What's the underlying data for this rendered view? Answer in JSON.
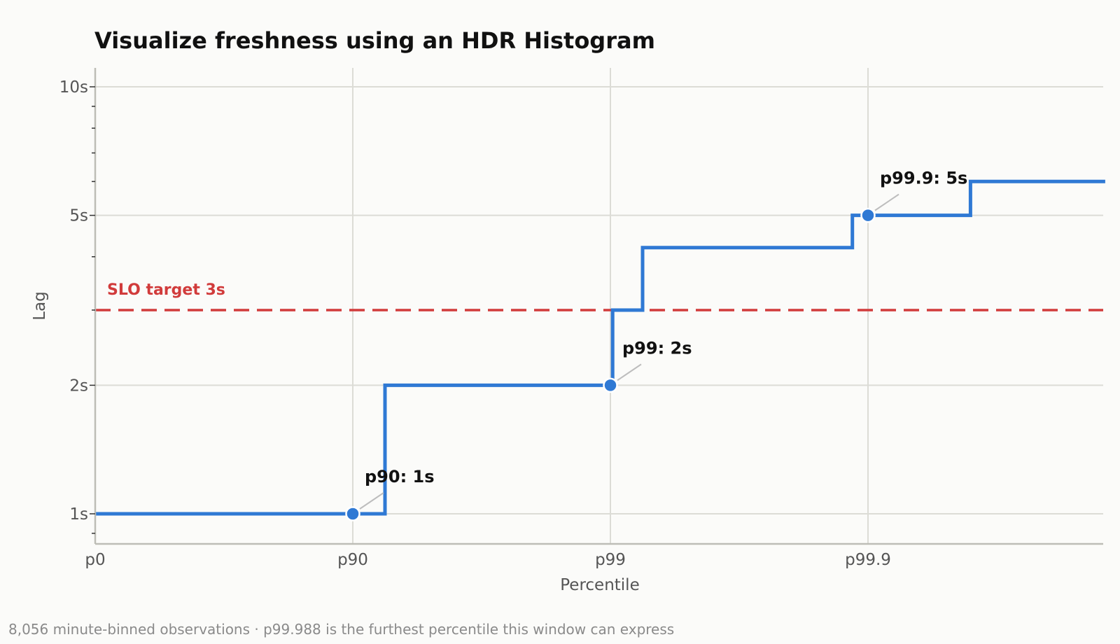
{
  "colors": {
    "background": "#fbfbf9",
    "series": "#2f79d4",
    "reference": "#d13b3b",
    "grid": "#dcdcd6",
    "axis": "#bdbdb6",
    "leader": "#bdbdbd"
  },
  "footnote": "8,056 minute-binned observations · p99.988 is the furthest percentile this window can express",
  "chart_data": {
    "type": "line",
    "title": "Visualize freshness using an HDR Histogram",
    "xlabel": "Percentile",
    "ylabel": "Lag",
    "x_scale": "log of 1/(1-percentile)",
    "y_scale": "log",
    "x_ticks": [
      {
        "value": 0,
        "label": "p0"
      },
      {
        "value": 90,
        "label": "p90"
      },
      {
        "value": 99,
        "label": "p99"
      },
      {
        "value": 99.9,
        "label": "p99.9"
      }
    ],
    "xlim": [
      0,
      99.988
    ],
    "y_ticks": [
      {
        "value": 1,
        "label": "1s"
      },
      {
        "value": 2,
        "label": "2s"
      },
      {
        "value": 5,
        "label": "5s"
      },
      {
        "value": 10,
        "label": "10s"
      }
    ],
    "ylim": [
      0.85,
      11.5
    ],
    "grid": true,
    "series": [
      {
        "style": "step",
        "points": [
          {
            "x": 0,
            "y": 1
          },
          {
            "x": 92.5,
            "y": 1
          },
          {
            "x": 92.5,
            "y": 2
          },
          {
            "x": 99.02,
            "y": 2
          },
          {
            "x": 99.02,
            "y": 3
          },
          {
            "x": 99.25,
            "y": 3
          },
          {
            "x": 99.25,
            "y": 4.2
          },
          {
            "x": 99.885,
            "y": 4.2
          },
          {
            "x": 99.885,
            "y": 5
          },
          {
            "x": 99.96,
            "y": 5
          },
          {
            "x": 99.96,
            "y": 6
          },
          {
            "x": 99.988,
            "y": 6
          }
        ]
      }
    ],
    "markers": [
      {
        "x": 90,
        "y": 1,
        "label": "p90: 1s"
      },
      {
        "x": 99,
        "y": 2,
        "label": "p99: 2s"
      },
      {
        "x": 99.9,
        "y": 5,
        "label": "p99.9: 5s"
      }
    ],
    "reference_lines": [
      {
        "y": 3,
        "label": "SLO target 3s",
        "style": "dashed"
      }
    ]
  }
}
